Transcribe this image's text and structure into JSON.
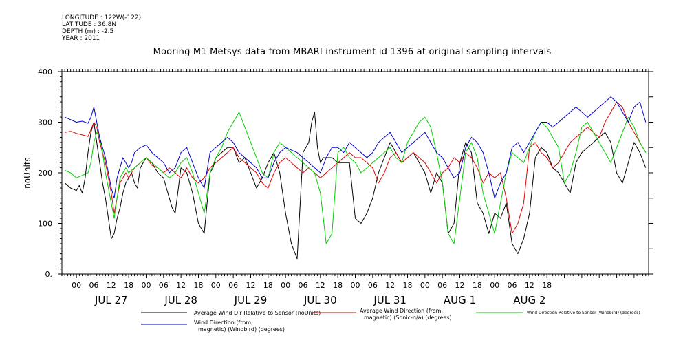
{
  "meta": {
    "longitude": "LONGITUDE : 122W(-122)",
    "latitude": "LATITUDE : 36.8N",
    "depth": "DEPTH (m) : -2.5",
    "year": "YEAR : 2011"
  },
  "chart_data": {
    "type": "line",
    "title": "Mooring M1 Metsys data from MBARI instrument id 1396 at original sampling intervals",
    "ylabel": "noUnits",
    "xlabel": "",
    "ylim": [
      0,
      400
    ],
    "yticks": [
      0,
      100,
      200,
      300,
      400
    ],
    "ytick_labels": [
      "0.",
      "100",
      "200",
      "300",
      "400"
    ],
    "xlim_hours": [
      -5,
      197
    ],
    "hour_tick_labels": [
      "00",
      "06",
      "12",
      "18",
      "00",
      "06",
      "12",
      "18",
      "00",
      "06",
      "12",
      "18",
      "00",
      "06",
      "12",
      "18",
      "00",
      "06",
      "12",
      "18",
      "00",
      "06",
      "12",
      "18",
      "00",
      "06",
      "12",
      "18"
    ],
    "day_labels": [
      "JUL 27",
      "JUL 28",
      "JUL 29",
      "JUL 30",
      "JUL 31",
      "AUG  1",
      "AUG  2"
    ],
    "colors": {
      "black": "#000000",
      "red": "#e00000",
      "green": "#00d000",
      "blue": "#0000c8"
    },
    "series": [
      {
        "name": "Average Wind Dir Relative to Sensor (noUnits)",
        "color": "#000000",
        "x": [
          -4,
          -2,
          0,
          1,
          2,
          3,
          4,
          5,
          6,
          7,
          8,
          9,
          10,
          11,
          12,
          13,
          14,
          15,
          16,
          17,
          18,
          19,
          20,
          21,
          22,
          23,
          24,
          26,
          28,
          30,
          32,
          33,
          34,
          36,
          38,
          40,
          42,
          44,
          46,
          47,
          48,
          50,
          52,
          54,
          56,
          58,
          60,
          62,
          64,
          66,
          68,
          70,
          72,
          74,
          76,
          78,
          80,
          81,
          82,
          83,
          84,
          85,
          86,
          88,
          90,
          92,
          94,
          96,
          98,
          100,
          102,
          104,
          106,
          108,
          110,
          112,
          114,
          116,
          118,
          120,
          122,
          124,
          126,
          128,
          130,
          132,
          134,
          136,
          138,
          140,
          142,
          144,
          146,
          148,
          150,
          152,
          154,
          156,
          158,
          160,
          162,
          164,
          166,
          168,
          170,
          172,
          174,
          176,
          178,
          180,
          182,
          184,
          186,
          188,
          190,
          192,
          194,
          196
        ],
        "y": [
          180,
          170,
          165,
          175,
          160,
          190,
          240,
          280,
          300,
          260,
          220,
          180,
          150,
          110,
          70,
          80,
          110,
          130,
          160,
          180,
          190,
          200,
          180,
          170,
          210,
          220,
          230,
          220,
          200,
          190,
          150,
          130,
          120,
          210,
          200,
          160,
          100,
          80,
          200,
          210,
          230,
          240,
          250,
          250,
          220,
          230,
          200,
          170,
          190,
          220,
          240,
          200,
          120,
          60,
          30,
          240,
          260,
          300,
          320,
          250,
          220,
          230,
          230,
          230,
          220,
          220,
          220,
          110,
          100,
          120,
          150,
          200,
          230,
          260,
          240,
          220,
          230,
          240,
          220,
          200,
          160,
          200,
          180,
          80,
          100,
          220,
          260,
          240,
          140,
          120,
          80,
          120,
          110,
          140,
          60,
          40,
          70,
          120,
          230,
          250,
          240,
          210,
          200,
          180,
          160,
          220,
          240,
          250,
          260,
          270,
          280,
          260,
          200,
          180,
          220,
          260,
          240,
          210
        ]
      },
      {
        "name": "Average Wind Direction (from, magnetic) (Sonic-n/a) (degrees)",
        "color": "#e00000",
        "x": [
          -4,
          -2,
          0,
          2,
          4,
          5,
          6,
          7,
          8,
          9,
          10,
          11,
          12,
          13,
          14,
          15,
          16,
          17,
          18,
          19,
          20,
          22,
          24,
          26,
          28,
          30,
          32,
          34,
          36,
          38,
          40,
          42,
          44,
          46,
          48,
          50,
          52,
          54,
          56,
          58,
          60,
          62,
          64,
          66,
          68,
          70,
          72,
          74,
          76,
          78,
          80,
          82,
          84,
          86,
          88,
          90,
          92,
          94,
          96,
          98,
          100,
          102,
          104,
          106,
          108,
          110,
          112,
          114,
          116,
          118,
          120,
          122,
          124,
          126,
          128,
          130,
          132,
          134,
          136,
          138,
          140,
          142,
          144,
          146,
          148,
          150,
          152,
          154,
          156,
          158,
          160,
          162,
          164,
          166,
          168,
          170,
          172,
          174,
          176,
          178,
          180,
          182,
          184,
          186,
          188,
          190,
          192,
          194,
          196
        ],
        "y": [
          280,
          282,
          278,
          275,
          272,
          285,
          300,
          290,
          260,
          240,
          220,
          190,
          160,
          120,
          150,
          180,
          190,
          200,
          190,
          200,
          210,
          220,
          230,
          215,
          210,
          200,
          210,
          200,
          190,
          210,
          190,
          180,
          190,
          210,
          220,
          230,
          240,
          250,
          230,
          220,
          210,
          200,
          180,
          170,
          200,
          220,
          230,
          220,
          210,
          200,
          210,
          200,
          190,
          200,
          210,
          220,
          230,
          240,
          230,
          230,
          220,
          210,
          180,
          200,
          230,
          240,
          220,
          230,
          240,
          230,
          220,
          200,
          180,
          200,
          210,
          230,
          220,
          240,
          230,
          210,
          180,
          200,
          190,
          200,
          150,
          80,
          100,
          140,
          250,
          260,
          240,
          230,
          210,
          220,
          240,
          260,
          270,
          280,
          290,
          280,
          270,
          300,
          320,
          340,
          330,
          300,
          280,
          260,
          240
        ]
      },
      {
        "name": "Wind Direction Relative to Sensor (Windbird) (degrees)",
        "color": "#00d000",
        "x": [
          -4,
          -2,
          0,
          2,
          4,
          5,
          6,
          7,
          8,
          9,
          10,
          11,
          12,
          13,
          14,
          15,
          16,
          17,
          18,
          19,
          20,
          22,
          24,
          26,
          28,
          30,
          32,
          34,
          36,
          38,
          40,
          42,
          44,
          46,
          48,
          50,
          52,
          54,
          56,
          58,
          60,
          62,
          64,
          66,
          68,
          70,
          72,
          74,
          76,
          78,
          80,
          82,
          84,
          86,
          88,
          90,
          92,
          94,
          96,
          98,
          100,
          102,
          104,
          106,
          108,
          110,
          112,
          114,
          116,
          118,
          120,
          122,
          124,
          126,
          128,
          130,
          132,
          134,
          136,
          138,
          140,
          142,
          144,
          146,
          148,
          150,
          152,
          154,
          156,
          158,
          160,
          162,
          164,
          166,
          168,
          170,
          172,
          174,
          176,
          178,
          180,
          182,
          184,
          186,
          188,
          190,
          192,
          194,
          196
        ],
        "y": [
          205,
          200,
          190,
          195,
          200,
          220,
          260,
          280,
          270,
          240,
          200,
          170,
          140,
          110,
          150,
          190,
          200,
          210,
          200,
          205,
          210,
          220,
          230,
          220,
          210,
          200,
          190,
          200,
          220,
          230,
          200,
          160,
          120,
          200,
          230,
          250,
          280,
          300,
          320,
          290,
          260,
          230,
          200,
          190,
          240,
          260,
          250,
          240,
          230,
          220,
          210,
          200,
          160,
          60,
          80,
          240,
          250,
          230,
          220,
          200,
          210,
          220,
          230,
          240,
          250,
          230,
          220,
          260,
          280,
          300,
          310,
          290,
          240,
          180,
          80,
          60,
          150,
          240,
          260,
          230,
          160,
          120,
          80,
          140,
          200,
          240,
          230,
          220,
          250,
          280,
          300,
          290,
          270,
          250,
          180,
          200,
          240,
          290,
          300,
          280,
          260,
          240,
          220,
          250,
          280,
          310,
          290,
          260,
          240
        ]
      },
      {
        "name": "Wind Direction (from, magnetic) (Windbird) (degrees)",
        "color": "#0000c8",
        "x": [
          -4,
          -2,
          0,
          2,
          4,
          5,
          6,
          7,
          8,
          9,
          10,
          11,
          12,
          13,
          14,
          15,
          16,
          17,
          18,
          19,
          20,
          22,
          24,
          26,
          28,
          30,
          32,
          34,
          36,
          38,
          40,
          42,
          44,
          46,
          48,
          50,
          52,
          54,
          56,
          58,
          60,
          62,
          64,
          66,
          68,
          70,
          72,
          74,
          76,
          78,
          80,
          82,
          84,
          86,
          88,
          90,
          92,
          94,
          96,
          98,
          100,
          102,
          104,
          106,
          108,
          110,
          112,
          114,
          116,
          118,
          120,
          122,
          124,
          126,
          128,
          130,
          132,
          134,
          136,
          138,
          140,
          142,
          144,
          146,
          148,
          150,
          152,
          154,
          156,
          158,
          160,
          162,
          164,
          166,
          168,
          170,
          172,
          174,
          176,
          178,
          180,
          182,
          184,
          186,
          188,
          190,
          192,
          194,
          196
        ],
        "y": [
          310,
          305,
          300,
          302,
          298,
          310,
          330,
          300,
          270,
          250,
          230,
          200,
          170,
          150,
          190,
          210,
          230,
          220,
          210,
          220,
          240,
          250,
          255,
          240,
          230,
          220,
          200,
          210,
          240,
          250,
          220,
          190,
          170,
          240,
          250,
          260,
          270,
          260,
          240,
          230,
          220,
          210,
          190,
          190,
          220,
          240,
          250,
          245,
          240,
          230,
          220,
          210,
          200,
          230,
          250,
          250,
          240,
          260,
          250,
          240,
          230,
          240,
          260,
          270,
          280,
          260,
          240,
          250,
          260,
          270,
          280,
          260,
          240,
          230,
          210,
          190,
          200,
          250,
          270,
          260,
          240,
          200,
          150,
          180,
          200,
          250,
          260,
          240,
          260,
          280,
          300,
          300,
          290,
          300,
          310,
          320,
          330,
          320,
          310,
          320,
          330,
          340,
          350,
          340,
          320,
          300,
          330,
          340,
          300
        ]
      }
    ]
  },
  "legend": {
    "entries": [
      "Average Wind Dir Relative to Sensor (noUnits)",
      "Average Wind Direction (from,",
      "magnetic) (Sonic-n/a) (degrees)",
      "Wind Direction Relative to Sensor (Windbird) (degrees)",
      "Wind Direction (from,",
      "magnetic) (Windbird) (degrees)"
    ]
  }
}
